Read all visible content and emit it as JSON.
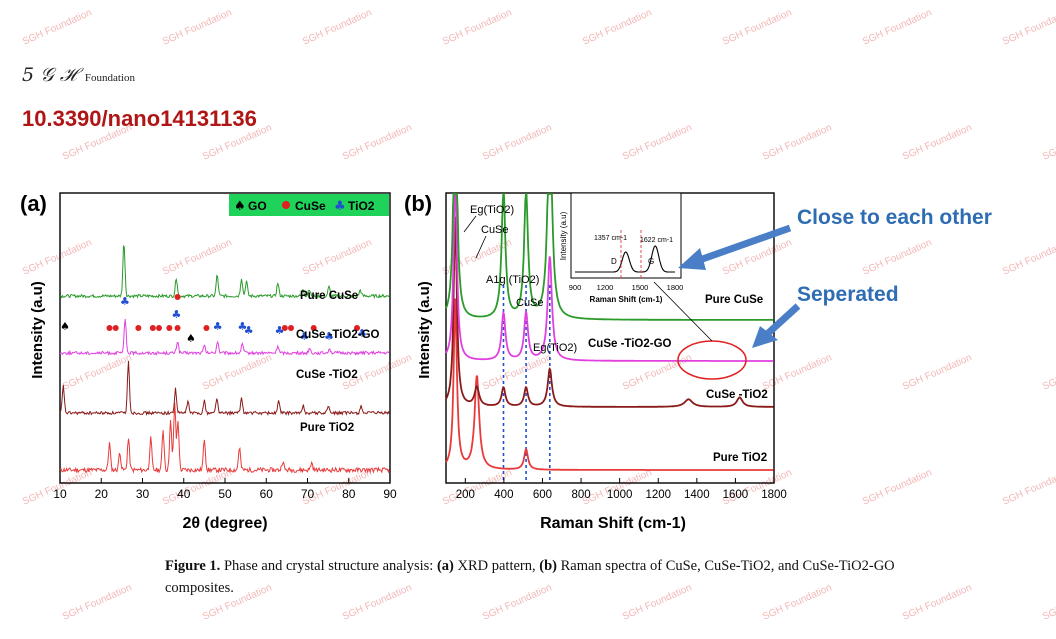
{
  "watermark": {
    "text": "SGH Foundation"
  },
  "header": {
    "logo_mark": "5 𝒢 ℋ",
    "logo_text": "Foundation",
    "doi": "10.3390/nano14131136"
  },
  "colors": {
    "doi": "#b01515",
    "annotation": "#2e6db3",
    "pure_cuse": "#e83a3a",
    "cuse_tio2_go": "#8a1a1a",
    "cuse_tio2": "#e040e0",
    "pure_tio2": "#2a9a2a",
    "legend_bg": "#1fd35a",
    "marker_go": "#000000",
    "marker_cuse": "#e02020",
    "marker_tio2": "#2050d0"
  },
  "annotations": {
    "close": "Close to each other",
    "separated": "Seperated"
  },
  "panel_a": {
    "label": "(a)",
    "legend": [
      {
        "marker": "spade-icon",
        "label": "GO"
      },
      {
        "marker": "dot-icon",
        "label": "CuSe"
      },
      {
        "marker": "club-icon",
        "label": "TiO2"
      }
    ],
    "ylabel": "Intensity (a.u)",
    "xlabel": "2θ (degree)",
    "sample_labels": [
      "Pure CuSe",
      "CuSe -TiO2-GO",
      "CuSe -TiO2",
      "Pure TiO2"
    ]
  },
  "panel_b": {
    "label": "(b)",
    "ylabel": "Intensity (a.u)",
    "xlabel": "Raman Shift (cm-1)",
    "sample_labels": [
      "Pure CuSe",
      "CuSe -TiO2-GO",
      "CuSe -TiO2",
      "Pure TiO2"
    ],
    "peak_labels": [
      "Eg(TiO2)",
      "CuSe",
      "A1g (TiO2)",
      "CuSe",
      "Eg(TiO2)"
    ],
    "inset": {
      "ylabel": "Intensity (a.u)",
      "xlabel": "Raman Shift (cm-1)",
      "xticks": [
        "900",
        "1200",
        "1500",
        "1800"
      ],
      "peak_labels": [
        "1357 cm-1",
        "1622 cm-1"
      ],
      "band_labels": [
        "D",
        "G"
      ]
    }
  },
  "caption": {
    "figure": "Figure 1.",
    "text": " Phase and crystal structure analysis: ",
    "a": "(a)",
    "a_text": " XRD pattern, ",
    "b": "(b)",
    "b_text": " Raman spectra of CuSe, CuSe-TiO2, and CuSe-TiO2-GO composites."
  },
  "chart_data": [
    {
      "type": "line",
      "title": "",
      "xlabel": "2θ (degree)",
      "ylabel": "Intensity (a.u)",
      "xlim": [
        10,
        90
      ],
      "xticks": [
        10,
        20,
        30,
        40,
        50,
        60,
        70,
        80,
        90
      ],
      "legend": [
        "GO",
        "CuSe",
        "TiO2"
      ],
      "legend_position": "top-right",
      "series": [
        {
          "name": "Pure CuSe",
          "offset": 3,
          "peaks": [
            [
              22,
              0.3
            ],
            [
              24.5,
              0.2
            ],
            [
              26.6,
              0.35
            ],
            [
              32,
              0.35
            ],
            [
              35,
              0.45
            ],
            [
              36.8,
              0.55
            ],
            [
              37.8,
              0.75
            ],
            [
              38.6,
              0.55
            ],
            [
              45,
              0.35
            ],
            [
              53.5,
              0.25
            ],
            [
              64,
              0.1
            ],
            [
              71,
              0.08
            ]
          ]
        },
        {
          "name": "CuSe -TiO2-GO",
          "offset": 2,
          "peaks": [
            [
              10.8,
              0.45
            ],
            [
              26.6,
              0.85
            ],
            [
              38,
              0.4
            ],
            [
              41,
              0.2
            ],
            [
              45,
              0.2
            ],
            [
              48,
              0.25
            ],
            [
              54,
              0.25
            ],
            [
              63,
              0.2
            ],
            [
              69,
              0.12
            ],
            [
              75,
              0.12
            ],
            [
              83,
              0.12
            ]
          ]
        },
        {
          "name": "CuSe -TiO2",
          "offset": 1,
          "peaks": [
            [
              25.8,
              0.55
            ],
            [
              38.5,
              0.2
            ],
            [
              45,
              0.12
            ],
            [
              48.2,
              0.2
            ],
            [
              54.2,
              0.15
            ],
            [
              62.8,
              0.12
            ],
            [
              70.5,
              0.08
            ],
            [
              75.3,
              0.08
            ]
          ]
        },
        {
          "name": "Pure TiO2",
          "offset": 0,
          "peaks": [
            [
              25.5,
              0.9
            ],
            [
              38.2,
              0.3
            ],
            [
              48.1,
              0.35
            ],
            [
              54,
              0.3
            ],
            [
              55.2,
              0.25
            ],
            [
              62.8,
              0.22
            ],
            [
              68.9,
              0.12
            ],
            [
              70.4,
              0.12
            ],
            [
              75.2,
              0.15
            ],
            [
              82.8,
              0.1
            ]
          ]
        }
      ]
    },
    {
      "type": "line",
      "title": "",
      "xlabel": "Raman Shift (cm-1)",
      "ylabel": "Intensity (a.u)",
      "xlim": [
        100,
        1800
      ],
      "xticks": [
        200,
        400,
        600,
        800,
        1000,
        1200,
        1400,
        1600,
        1800
      ],
      "reference_lines": [
        398,
        515,
        638
      ],
      "series": [
        {
          "name": "Pure CuSe",
          "offset": 3,
          "peaks": [
            [
              148,
              1.0
            ],
            [
              260,
              0.55
            ],
            [
              515,
              0.12
            ]
          ]
        },
        {
          "name": "CuSe -TiO2-GO",
          "offset": 2,
          "peaks": [
            [
              148,
              1.0
            ],
            [
              260,
              0.1
            ],
            [
              398,
              0.1
            ],
            [
              515,
              0.1
            ],
            [
              638,
              0.2
            ],
            [
              1357,
              0.04
            ],
            [
              1622,
              0.05
            ]
          ]
        },
        {
          "name": "CuSe -TiO2",
          "offset": 1,
          "peaks": [
            [
              148,
              1.0
            ],
            [
              398,
              0.25
            ],
            [
              515,
              0.25
            ],
            [
              638,
              0.55
            ]
          ]
        },
        {
          "name": "Pure TiO2",
          "offset": 0,
          "peaks": [
            [
              148,
              1.6
            ],
            [
              398,
              0.75
            ],
            [
              515,
              0.75
            ],
            [
              638,
              1.3
            ]
          ]
        }
      ],
      "inset": {
        "xlim": [
          900,
          1800
        ],
        "peaks": [
          [
            1357,
            1.0
          ],
          [
            1622,
            1.3
          ]
        ]
      }
    }
  ]
}
